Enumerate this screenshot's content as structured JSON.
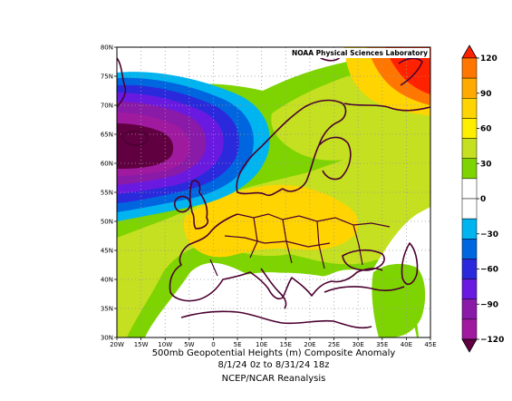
{
  "credit": "NOAA Physical Sciences Laboratory",
  "title": {
    "line1": "500mb Geopotential Heights (m)   Composite Anomaly",
    "line2": "8/1/24 0z  to 8/31/24 18z",
    "line3": "NCEP/NCAR Reanalysis"
  },
  "map": {
    "lon_range": [
      -20,
      45
    ],
    "lat_range": [
      30,
      80
    ],
    "lon_ticks": [
      "20W",
      "15W",
      "10W",
      "5W",
      "0",
      "5E",
      "10E",
      "15E",
      "20E",
      "25E",
      "30E",
      "35E",
      "40E",
      "45E"
    ],
    "lat_ticks": [
      "30N",
      "35N",
      "40N",
      "45N",
      "50N",
      "55N",
      "60N",
      "65N",
      "70N",
      "75N",
      "80N"
    ],
    "grid": true
  },
  "colorbar": {
    "labels": [
      "120",
      "90",
      "60",
      "30",
      "0",
      "−30",
      "−60",
      "−90",
      "−120"
    ],
    "colors": [
      "#ff2200",
      "#ff7700",
      "#ffaa00",
      "#ffd400",
      "#ffee00",
      "#c4e020",
      "#7dd400",
      "#ffffff",
      "#ffffff",
      "#00b4f0",
      "#0066e0",
      "#2a2adc",
      "#6a1ae0",
      "#8a1aa8",
      "#a01aa0",
      "#600040"
    ]
  },
  "field_colors": {
    "pos_30_45": "#7dd400",
    "pos_45_60": "#c4e020",
    "pos_60_75": "#ffd400",
    "pos_90_105": "#ff7700",
    "pos_105_120": "#ff2200",
    "neg_15_30": "#00b4f0",
    "neg_30_45": "#0066e0",
    "neg_45_60": "#2a2adc",
    "neg_60_75": "#6a1ae0",
    "neg_75_90": "#8a1aa8",
    "neg_90_105": "#a01aa0",
    "neg_105_120": "#600040",
    "coast": "#4b0030"
  }
}
